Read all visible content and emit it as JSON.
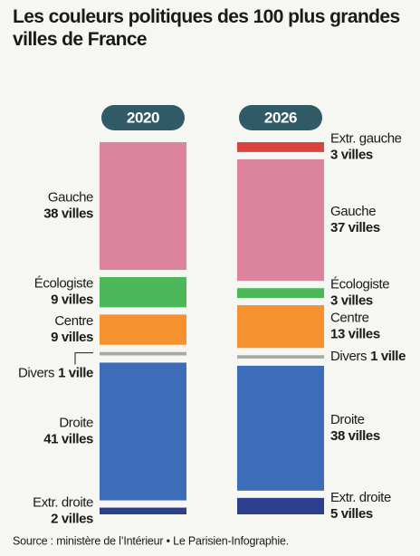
{
  "chart_data": {
    "type": "stacked_column",
    "title": "Les couleurs politiques des 100 plus grandes villes de France",
    "source": "Source : ministère de l’Intérieur • Le Parisien-Infographie.",
    "categories": [
      "2020",
      "2026"
    ],
    "series": [
      {
        "name": "Extr. gauche",
        "color": "#d9443f",
        "values": [
          null,
          3
        ],
        "value_labels": [
          null,
          "3 villes"
        ]
      },
      {
        "name": "Gauche",
        "color": "#dc849d",
        "values": [
          38,
          37
        ],
        "value_labels": [
          "38 villes",
          "37 villes"
        ]
      },
      {
        "name": "Écologiste",
        "color": "#4db85a",
        "values": [
          9,
          3
        ],
        "value_labels": [
          "9 villes",
          "3 villes"
        ]
      },
      {
        "name": "Centre",
        "color": "#f5922f",
        "values": [
          9,
          13
        ],
        "value_labels": [
          "9 villes",
          "13 villes"
        ]
      },
      {
        "name": "Divers",
        "color": "#a9a9a2",
        "values": [
          1,
          1
        ],
        "value_labels": [
          "1 ville",
          "1 ville"
        ]
      },
      {
        "name": "Droite",
        "color": "#3d6cb8",
        "values": [
          41,
          38
        ],
        "value_labels": [
          "41 villes",
          "38 villes"
        ]
      },
      {
        "name": "Extr. droite",
        "color": "#2c3f8e",
        "values": [
          2,
          5
        ],
        "value_labels": [
          "2 villes",
          "5 villes"
        ]
      }
    ]
  }
}
